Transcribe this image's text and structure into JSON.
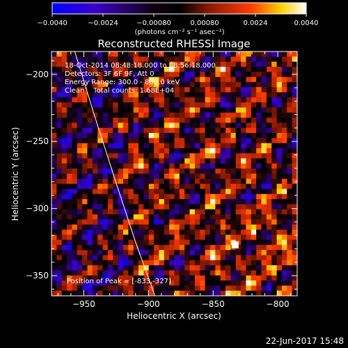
{
  "chart_data": {
    "type": "heatmap",
    "title": "Reconstructed RHESSI Image",
    "xlabel": "Heliocentric X (arcsec)",
    "ylabel": "Heliocentric Y (arcsec)",
    "xlim": [
      -975,
      -785
    ],
    "ylim": [
      -365,
      -183
    ],
    "x_ticks": [
      -950,
      -900,
      -850,
      -800
    ],
    "y_ticks": [
      -200,
      -250,
      -300,
      -350
    ],
    "x_tick_labels": [
      "−950",
      "−900",
      "−850",
      "−800"
    ],
    "y_tick_labels": [
      "−200",
      "−250",
      "−300",
      "−350"
    ],
    "colorbar": {
      "min": -0.004,
      "max": 0.004,
      "ticks": [
        -0.004,
        -0.0024,
        -0.0008,
        0.0008,
        0.0024,
        0.004
      ],
      "tick_labels": [
        "−0.0040",
        "−0.0024",
        "−0.00080",
        "0.00080",
        "0.0024",
        "0.0040"
      ],
      "units": "(photons cm⁻² s⁻¹ asec⁻²)",
      "colormap": [
        "#0000ff",
        "#3000c0",
        "#000000",
        "#8c1a00",
        "#ff2a00",
        "#ffd000",
        "#ffffff"
      ]
    },
    "annotations": [
      "18-Oct-2014 08:48:18.000 to 08:56:18.000",
      "Detectors: 3F 6F 9F, Att 0",
      "Energy Range: 300.0 - 800.0 keV",
      "Clean    Total counts: 1.68E+04"
    ],
    "peak_label": "Position of Peak = [-833,-327]",
    "peak_position": [
      -833,
      -327
    ],
    "limb_curve": [
      [
        -957,
        -183
      ],
      [
        -942,
        -230
      ],
      [
        -926,
        -278
      ],
      [
        -910,
        -325
      ],
      [
        -895,
        -365
      ]
    ]
  },
  "footer": {
    "timestamp": "22-Jun-2017 15:48"
  }
}
